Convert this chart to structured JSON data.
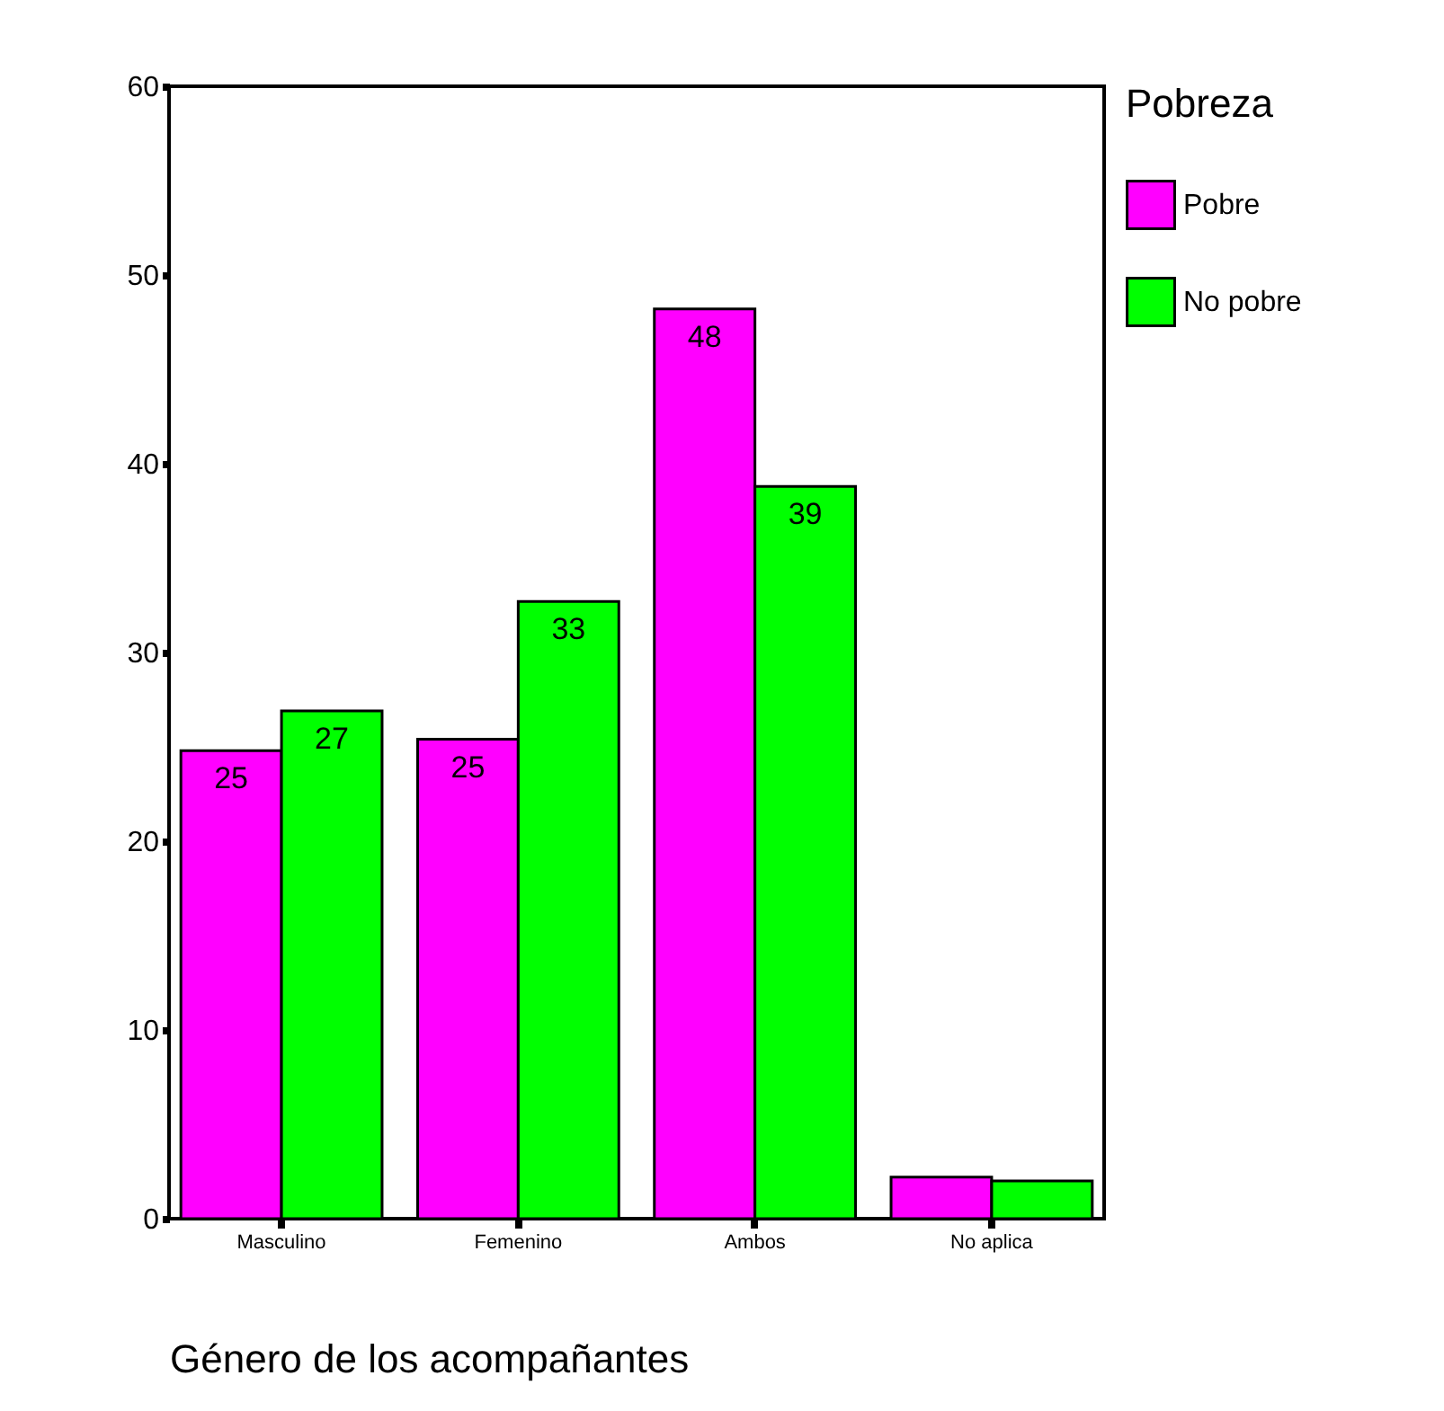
{
  "chart_data": {
    "type": "bar",
    "xlabel": "Género de los acompañantes",
    "legend_title": "Pobreza",
    "categories": [
      "Masculino",
      "Femenino",
      "Ambos",
      "No aplica"
    ],
    "series": [
      {
        "name": "Pobre",
        "color": "#ff00ff",
        "values": [
          24.8,
          25.4,
          48.2,
          2.2
        ],
        "value_labels": [
          "25",
          "25",
          "48",
          null
        ]
      },
      {
        "name": "No pobre",
        "color": "#00ff00",
        "values": [
          26.9,
          32.7,
          38.8,
          2.0
        ],
        "value_labels": [
          "27",
          "33",
          "39",
          null
        ]
      }
    ],
    "ylim": [
      0,
      60
    ],
    "yticks": [
      0,
      10,
      20,
      30,
      40,
      50,
      60
    ],
    "grid": false,
    "legend": "right"
  }
}
